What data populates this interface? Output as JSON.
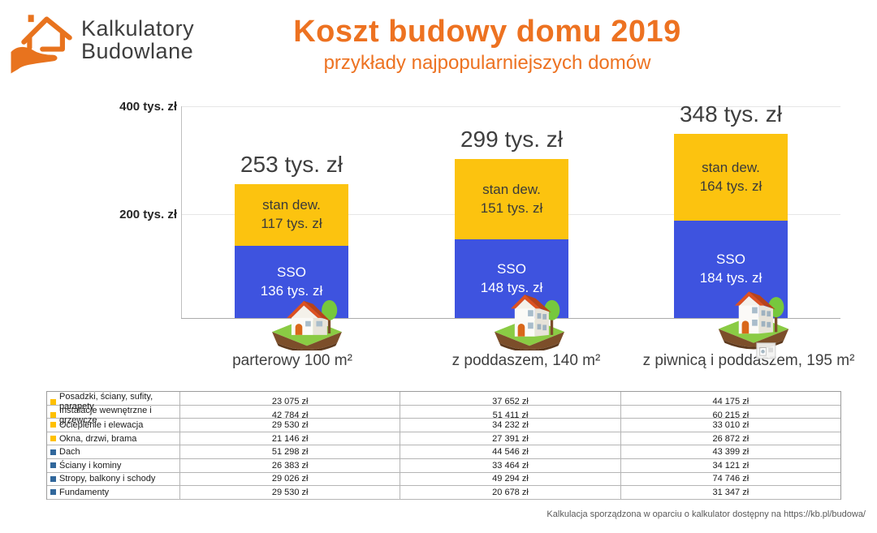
{
  "logo": {
    "line1": "Kalkulatory",
    "line2": "Budowlane"
  },
  "header": {
    "title": "Koszt budowy domu 2019",
    "subtitle": "przykłady najpopularniejszych domów"
  },
  "chart_data": {
    "type": "stacked-bar",
    "title": "Koszt budowy domu 2019",
    "unit": "tys. zł",
    "ylim": [
      0,
      400
    ],
    "grid": "faint horizontal at 200 and 400",
    "y_ticks": [
      {
        "value": 400,
        "label": "400 tys. zł"
      },
      {
        "value": 200,
        "label": "200 tys. zł"
      }
    ],
    "categories": [
      "parterowy 100 m²",
      "z poddaszem, 140 m²",
      "z piwnicą i poddaszem, 195 m²"
    ],
    "series": [
      {
        "name": "SSO",
        "color": "#3e53df",
        "text_color": "#ffffff",
        "values": [
          136,
          148,
          184
        ],
        "value_labels": [
          "136 tys. zł",
          "148 tys. zł",
          "184 tys. zł"
        ]
      },
      {
        "name": "stan dew.",
        "color": "#fcc30f",
        "text_color": "#3a3a3a",
        "values": [
          117,
          151,
          164
        ],
        "value_labels": [
          "117 tys. zł",
          "151 tys. zł",
          "164 tys. zł"
        ]
      }
    ],
    "totals": [
      253,
      299,
      348
    ],
    "total_labels": [
      "253 tys. zł",
      "299 tys. zł",
      "348 tys. zł"
    ]
  },
  "table": {
    "rows": [
      {
        "marker": "yellow",
        "label": "Posadzki, ściany, sufity, parapety",
        "values": [
          "23 075 zł",
          "37 652 zł",
          "44 175 zł"
        ]
      },
      {
        "marker": "yellow",
        "label": "Instalacje wewnętrzne i grzewcze",
        "values": [
          "42 784 zł",
          "51 411 zł",
          "60 215 zł"
        ]
      },
      {
        "marker": "yellow",
        "label": "Ocieplenie i elewacja",
        "values": [
          "29 530 zł",
          "34 232 zł",
          "33 010 zł"
        ]
      },
      {
        "marker": "yellow",
        "label": "Okna, drzwi, brama",
        "values": [
          "21 146 zł",
          "27 391 zł",
          "26 872 zł"
        ]
      },
      {
        "marker": "blue",
        "label": "Dach",
        "values": [
          "51 298 zł",
          "44 546 zł",
          "43 399 zł"
        ]
      },
      {
        "marker": "blue",
        "label": "Ściany i kominy",
        "values": [
          "26 383 zł",
          "33 464 zł",
          "34 121 zł"
        ]
      },
      {
        "marker": "blue",
        "label": "Stropy, balkony i schody",
        "values": [
          "29 026 zł",
          "49 294 zł",
          "74 746 zł"
        ]
      },
      {
        "marker": "blue",
        "label": "Fundamenty",
        "values": [
          "29 530 zł",
          "20 678 zł",
          "31 347 zł"
        ]
      }
    ]
  },
  "footer": {
    "note": "Kalkulacja sporządzona w oparciu o kalkulator dostępny na https://kb.pl/budowa/"
  },
  "colors": {
    "brand_orange": "#ed7221",
    "bar_blue": "#3e53df",
    "bar_yellow": "#fcc30f",
    "marker_yellow": "#ffc000",
    "marker_blue": "#31679b"
  }
}
